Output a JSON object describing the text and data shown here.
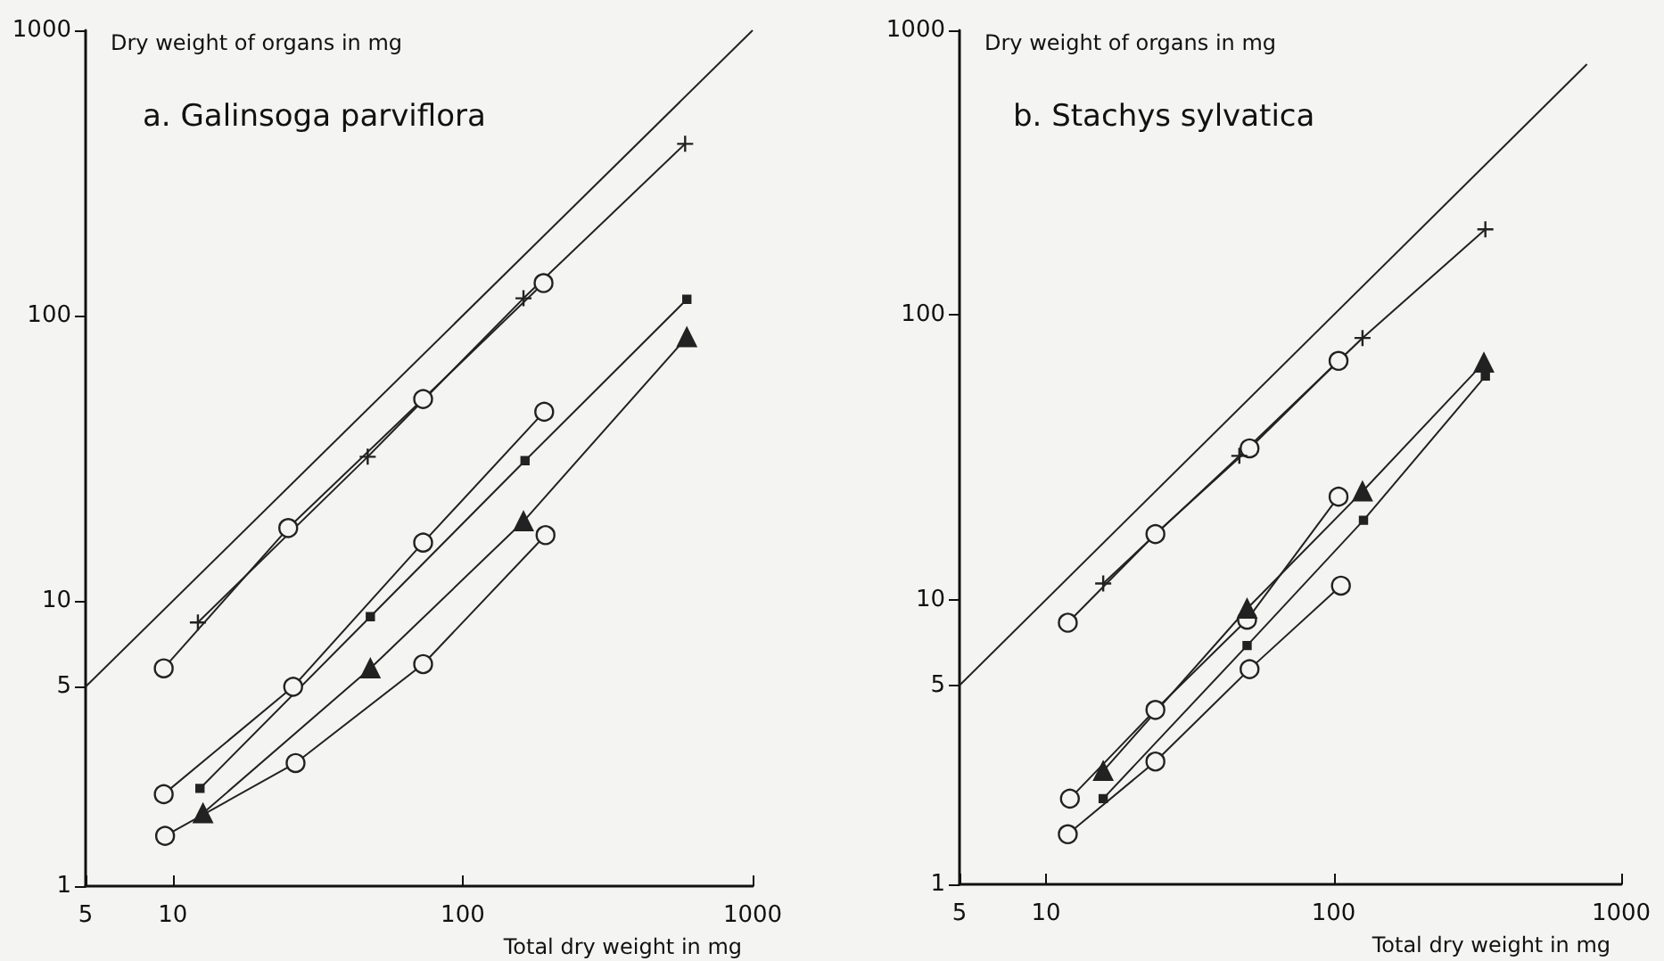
{
  "chart_data": [
    {
      "type": "line",
      "title": "a. Galinsoga parviflora",
      "xlabel": "Total dry weight in mg",
      "ylabel": "Dry weight of organs in mg",
      "log": "xy",
      "xlim": [
        5,
        1000
      ],
      "ylim": [
        1,
        1000
      ],
      "xticks": [
        5,
        10,
        100,
        1000
      ],
      "yticks": [
        1,
        5,
        10,
        100,
        1000
      ],
      "series": [
        {
          "color": "#222222",
          "marker": "none",
          "x": [
            5,
            1000
          ],
          "values": [
            5,
            1000
          ]
        },
        {
          "color": "#222222",
          "marker": "circle",
          "x": [
            9.3,
            25,
            73,
            190
          ],
          "values": [
            5.8,
            18,
            51,
            130
          ]
        },
        {
          "color": "#222222",
          "marker": "cross",
          "x": [
            12.2,
            47,
            162,
            585
          ],
          "values": [
            8.4,
            32,
            115,
            400
          ]
        },
        {
          "color": "#222222",
          "marker": "circle",
          "x": [
            9.3,
            26,
            73,
            191
          ],
          "values": [
            2.1,
            5,
            16,
            46
          ]
        },
        {
          "color": "#222222",
          "marker": "square",
          "x": [
            12.4,
            48,
            164,
            593
          ],
          "values": [
            2.2,
            8.8,
            31,
            114
          ]
        },
        {
          "color": "#222222",
          "marker": "triangle",
          "x": [
            12.7,
            48,
            162,
            593
          ],
          "values": [
            1.8,
            5.8,
            19,
            84
          ]
        },
        {
          "color": "#222222",
          "marker": "circle",
          "x": [
            9.4,
            26.5,
            73,
            193
          ],
          "values": [
            1.5,
            2.7,
            6,
            17
          ]
        }
      ]
    },
    {
      "type": "line",
      "title": "b. Stachys sylvatica",
      "xlabel": "Total dry weight in mg",
      "ylabel": "Dry weight of organs in mg",
      "log": "xy",
      "xlim": [
        5,
        1000
      ],
      "ylim": [
        1,
        1000
      ],
      "xticks": [
        5,
        10,
        100,
        1000
      ],
      "yticks": [
        1,
        5,
        10,
        100,
        1000
      ],
      "series": [
        {
          "color": "#222222",
          "marker": "none",
          "x": [
            5,
            760
          ],
          "values": [
            5,
            760
          ]
        },
        {
          "color": "#222222",
          "marker": "circle",
          "x": [
            11.9,
            24,
            51,
            104
          ],
          "values": [
            8.3,
            17,
            34,
            69
          ]
        },
        {
          "color": "#222222",
          "marker": "cross",
          "x": [
            15.8,
            47,
            126,
            337
          ],
          "values": [
            11.4,
            32,
            83,
            200
          ]
        },
        {
          "color": "#222222",
          "marker": "circle",
          "x": [
            12.1,
            24,
            50,
            104
          ],
          "values": [
            2,
            4.1,
            8.5,
            23
          ]
        },
        {
          "color": "#222222",
          "marker": "triangle",
          "x": [
            15.8,
            50,
            126,
            333
          ],
          "values": [
            2.5,
            9.3,
            24,
            68
          ]
        },
        {
          "color": "#222222",
          "marker": "square",
          "x": [
            15.8,
            50,
            127,
            337
          ],
          "values": [
            2,
            6.9,
            19,
            61
          ]
        },
        {
          "color": "#222222",
          "marker": "circle",
          "x": [
            11.9,
            24,
            51,
            106
          ],
          "values": [
            1.5,
            2.7,
            5.7,
            11.2
          ]
        }
      ]
    }
  ]
}
